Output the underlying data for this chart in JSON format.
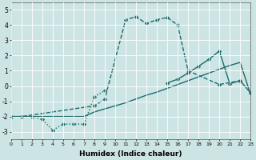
{
  "xlabel": "Humidex (Indice chaleur)",
  "xlim": [
    0,
    23
  ],
  "ylim": [
    -3.5,
    5.5
  ],
  "yticks": [
    -3,
    -2,
    -1,
    0,
    1,
    2,
    3,
    4,
    5
  ],
  "xticks": [
    0,
    1,
    2,
    3,
    4,
    5,
    6,
    7,
    8,
    9,
    10,
    11,
    12,
    13,
    14,
    15,
    16,
    17,
    18,
    19,
    20,
    21,
    22,
    23
  ],
  "bg_color": "#cde4e4",
  "grid_color": "#ffffff",
  "line_color": "#1a6b6b",
  "line1_x": [
    0,
    1,
    2,
    3,
    4,
    5,
    6,
    7,
    8,
    9
  ],
  "line1_y": [
    -2.0,
    -2.0,
    -2.0,
    -2.2,
    -2.9,
    -2.5,
    -2.5,
    -2.5,
    -0.7,
    -0.3
  ],
  "line2_x": [
    0,
    1,
    8,
    9,
    11,
    12,
    13,
    14,
    15,
    16,
    17,
    20,
    22
  ],
  "line2_y": [
    -2.0,
    -2.0,
    -1.3,
    -0.85,
    4.35,
    4.55,
    4.1,
    4.35,
    4.5,
    4.0,
    1.0,
    0.1,
    0.35
  ],
  "line3_x": [
    0,
    1,
    2,
    3,
    4,
    5,
    6,
    7,
    8,
    9,
    10,
    11,
    12,
    13,
    14,
    15,
    16,
    17,
    18,
    19,
    20,
    21,
    22,
    23
  ],
  "line3_y": [
    -2.0,
    -2.0,
    -2.0,
    -2.0,
    -2.0,
    -2.0,
    -2.0,
    -2.0,
    -1.7,
    -1.5,
    -1.3,
    -1.1,
    -0.85,
    -0.6,
    -0.4,
    -0.15,
    0.1,
    0.35,
    0.6,
    0.85,
    1.1,
    1.35,
    1.55,
    -0.55
  ],
  "line4_x": [
    15,
    16,
    17,
    18,
    19,
    20,
    21,
    22,
    23
  ],
  "line4_y": [
    0.2,
    0.45,
    0.85,
    1.3,
    1.75,
    2.3,
    0.15,
    0.35,
    -0.45
  ]
}
